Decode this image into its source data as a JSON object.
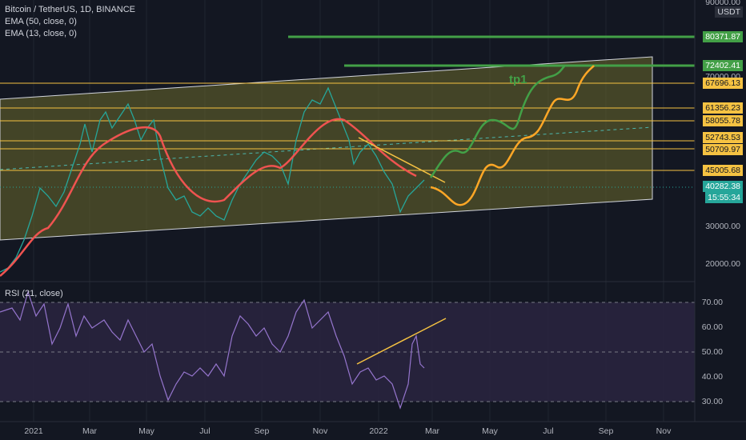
{
  "header": {
    "symbol": "Bitcoin / TetherUS, 1D, BINANCE",
    "indicators": [
      "EMA (50, close, 0)",
      "EMA (13, close, 0)"
    ],
    "currency": "USDT"
  },
  "rsi": {
    "label": "RSI (21, close)",
    "ticks": [
      "70.00",
      "60.00",
      "50.00",
      "40.00",
      "30.00"
    ]
  },
  "price_axis": {
    "ticks": [
      "90000.00",
      "70000.00",
      "30000.00",
      "20000.00"
    ],
    "last_price": "40282.38",
    "countdown": "15:55:34"
  },
  "levels": [
    {
      "label": "80371.87",
      "color": "#43a047"
    },
    {
      "label": "72402.41",
      "color": "#43a047"
    },
    {
      "label": "67696.13",
      "color": "#f5c242"
    },
    {
      "label": "61356.23",
      "color": "#f5c242"
    },
    {
      "label": "58055.78",
      "color": "#f5c242"
    },
    {
      "label": "52743.53",
      "color": "#f5c242"
    },
    {
      "label": "50709.97",
      "color": "#f5c242"
    },
    {
      "label": "45005.68",
      "color": "#f5c242"
    }
  ],
  "annotation": {
    "tp1": "tp1"
  },
  "time_axis": [
    "2021",
    "Mar",
    "May",
    "Jul",
    "Sep",
    "Nov",
    "2022",
    "Mar",
    "May",
    "Jul",
    "Sep",
    "Nov"
  ],
  "chart_data": {
    "type": "line",
    "price_scale": "log",
    "ylim": [
      17000,
      90000
    ],
    "price_path": [
      [
        "2020-12-20",
        23000
      ],
      [
        "2021-01-08",
        40000
      ],
      [
        "2021-01-27",
        31000
      ],
      [
        "2021-02-21",
        57000
      ],
      [
        "2021-03-13",
        61000
      ],
      [
        "2021-04-14",
        64000
      ],
      [
        "2021-05-19",
        36000
      ],
      [
        "2021-06-22",
        30000
      ],
      [
        "2021-07-20",
        30000
      ],
      [
        "2021-08-23",
        49000
      ],
      [
        "2021-09-07",
        52000
      ],
      [
        "2021-09-22",
        42000
      ],
      [
        "2021-10-20",
        66000
      ],
      [
        "2021-11-10",
        68500
      ],
      [
        "2021-12-04",
        47000
      ],
      [
        "2022-01-24",
        34500
      ],
      [
        "2022-02-10",
        44000
      ],
      [
        "2022-02-20",
        40282
      ]
    ],
    "rsi_path": [
      [
        "2020-12-20",
        62
      ],
      [
        "2021-01-08",
        75
      ],
      [
        "2021-02-21",
        70
      ],
      [
        "2021-05-19",
        32
      ],
      [
        "2021-07-20",
        42
      ],
      [
        "2021-10-20",
        70
      ],
      [
        "2021-11-10",
        62
      ],
      [
        "2021-12-04",
        42
      ],
      [
        "2022-01-24",
        28
      ],
      [
        "2022-02-10",
        55
      ],
      [
        "2022-02-20",
        45
      ]
    ],
    "projections": [
      {
        "color": "#43a047",
        "start": [
          "2022-02-22",
          40500
        ],
        "end": [
          "2022-07-12",
          72402
        ]
      },
      {
        "color": "#ffa726",
        "start": [
          "2022-02-24",
          39500
        ],
        "end": [
          "2022-08-12",
          72402
        ]
      }
    ]
  }
}
